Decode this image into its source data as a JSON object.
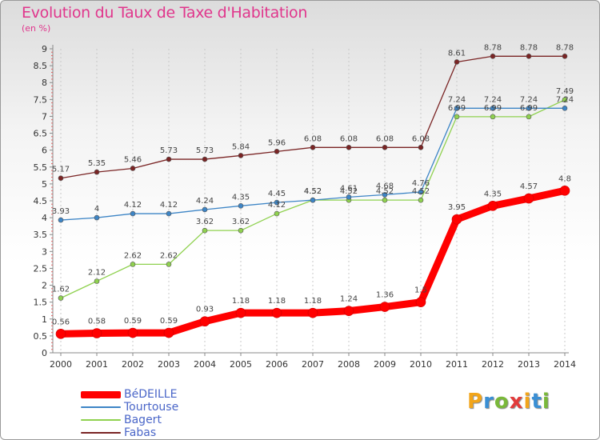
{
  "page": {
    "title": "Evolution du Taux de Taxe d'Habitation",
    "unit": "(en %)",
    "brand": {
      "letters": [
        "P",
        "r",
        "o",
        "x",
        "i",
        "t",
        "i"
      ],
      "colors": [
        "#f2a51a",
        "#3a8fd4",
        "#7ab83a",
        "#e23b3b",
        "#f2a51a",
        "#3a8fd4",
        "#7ab83a"
      ]
    }
  },
  "chart_data": {
    "type": "line",
    "title": "Evolution du Taux de Taxe d'Habitation",
    "ylabel": "(en %)",
    "xlabel": "",
    "x": [
      "2000",
      "2001",
      "2002",
      "2003",
      "2004",
      "2005",
      "2006",
      "2007",
      "2008",
      "2009",
      "2010",
      "2011",
      "2012",
      "2013",
      "2014"
    ],
    "ylim": [
      0,
      9
    ],
    "yticks": [
      "0",
      "0.5",
      "1",
      "1.5",
      "2",
      "2.5",
      "3",
      "3.5",
      "4",
      "4.5",
      "5",
      "5.5",
      "6",
      "6.5",
      "7",
      "7.5",
      "8",
      "8.5",
      "9"
    ],
    "grid": "vertical dashed",
    "legend_position": "bottom-left",
    "series": [
      {
        "name": "BéDEILLE",
        "color": "#ff0000",
        "values": [
          0.56,
          0.58,
          0.59,
          0.59,
          0.93,
          1.18,
          1.18,
          1.18,
          1.24,
          1.36,
          1.5,
          3.95,
          4.35,
          4.57,
          4.8
        ],
        "labels": [
          "0.56",
          "0.58",
          "0.59",
          "0.59",
          "0.93",
          "1.18",
          "1.18",
          "1.18",
          "1.24",
          "1.36",
          "1.5",
          "3.95",
          "4.35",
          "4.57",
          "4.8"
        ]
      },
      {
        "name": "Tourtouse",
        "color": "#3d85c6",
        "values": [
          3.93,
          4.0,
          4.12,
          4.12,
          4.24,
          4.35,
          4.45,
          4.52,
          4.61,
          4.68,
          4.76,
          7.24,
          7.24,
          7.24,
          7.24
        ],
        "labels": [
          "3.93",
          "4",
          "4.12",
          "4.12",
          "4.24",
          "4.35",
          "4.45",
          "4.52",
          "4.61",
          "4.68",
          "4.76",
          "7.24",
          "7.24",
          "7.24",
          "7.24"
        ]
      },
      {
        "name": "Bagert",
        "color": "#8fd14f",
        "values": [
          1.62,
          2.12,
          2.62,
          2.62,
          3.62,
          3.62,
          4.12,
          4.52,
          4.52,
          4.52,
          4.52,
          6.99,
          6.99,
          6.99,
          7.49
        ],
        "labels": [
          "1.62",
          "2.12",
          "2.62",
          "2.62",
          "3.62",
          "3.62",
          "4.12",
          "4.52",
          "4.52",
          "4.52",
          "4.52",
          "6.99",
          "6.99",
          "6.99",
          "7.49"
        ]
      },
      {
        "name": "Fabas",
        "color": "#7a2424",
        "values": [
          5.17,
          5.35,
          5.46,
          5.73,
          5.73,
          5.84,
          5.96,
          6.08,
          6.08,
          6.08,
          6.08,
          8.61,
          8.78,
          8.78,
          8.78
        ],
        "labels": [
          "5.17",
          "5.35",
          "5.46",
          "5.73",
          "5.73",
          "5.84",
          "5.96",
          "6.08",
          "6.08",
          "6.08",
          "6.08",
          "8.61",
          "8.78",
          "8.78",
          "8.78"
        ]
      }
    ]
  }
}
